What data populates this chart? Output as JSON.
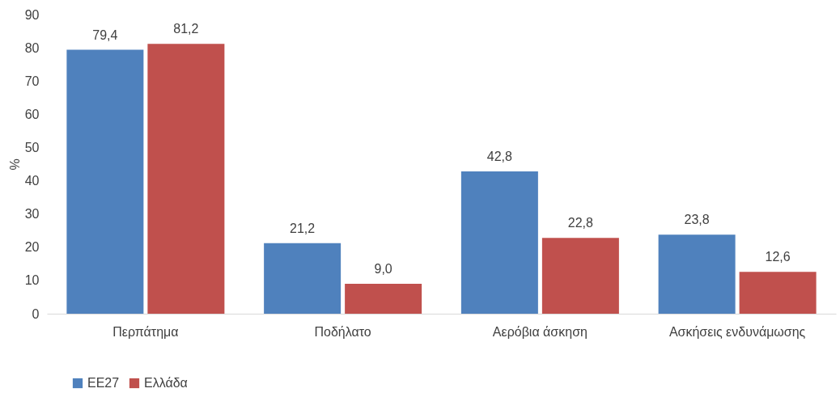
{
  "chart_data": {
    "type": "bar",
    "ylabel": "%",
    "categories": [
      "Περπάτημα",
      "Ποδήλατο",
      "Αερόβια άσκηση",
      "Ασκήσεις ενδυνάμωσης"
    ],
    "series": [
      {
        "name": "ΕΕ27",
        "color": "#4f81bd",
        "values": [
          79.4,
          21.2,
          42.8,
          23.8
        ],
        "value_labels": [
          "79,4",
          "21,2",
          "42,8",
          "23,8"
        ]
      },
      {
        "name": "Ελλάδα",
        "color": "#c0504d",
        "values": [
          81.2,
          9.0,
          22.8,
          12.6
        ],
        "value_labels": [
          "81,2",
          "9,0",
          "22,8",
          "12,6"
        ]
      }
    ],
    "ylim": [
      0,
      90
    ],
    "yticks": [
      0,
      10,
      20,
      30,
      40,
      50,
      60,
      70,
      80,
      90
    ],
    "grid": false,
    "legend": "bottom"
  }
}
